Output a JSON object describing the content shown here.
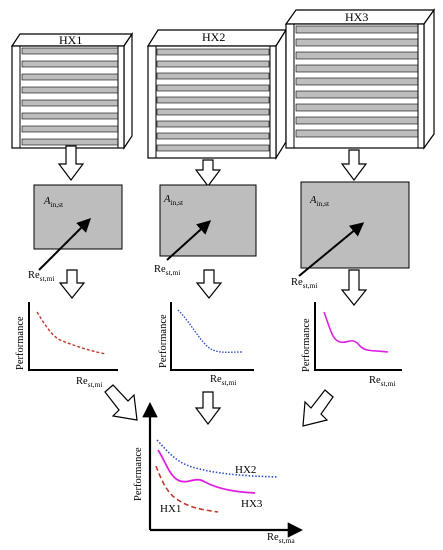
{
  "exchangers": [
    {
      "id": "hx1",
      "label": "HX1",
      "area_label": "A",
      "area_sub": "in,st",
      "re_label": "Re",
      "re_sub": "st,mi",
      "y_label": "Performance",
      "x_label": "Re",
      "x_sub": "st,mi",
      "color": "#c0392b"
    },
    {
      "id": "hx2",
      "label": "HX2",
      "area_label": "A",
      "area_sub": "in,st",
      "re_label": "Re",
      "re_sub": "st,mi",
      "y_label": "Performance",
      "x_label": "Re",
      "x_sub": "st,mi",
      "color": "#2f4fc4"
    },
    {
      "id": "hx3",
      "label": "HX3",
      "area_label": "A",
      "area_sub": "in,st",
      "re_label": "Re",
      "re_sub": "st,mi",
      "y_label": "Performance",
      "x_label": "Re",
      "x_sub": "st,mi",
      "color": "#e020e0"
    }
  ],
  "combined": {
    "y_label": "Performance",
    "x_label": "Re",
    "x_sub": "st,ma",
    "series": [
      {
        "name": "HX2",
        "color": "#2f4fc4",
        "style": "dotted"
      },
      {
        "name": "HX3",
        "color": "#e020e0",
        "style": "solid"
      },
      {
        "name": "HX1",
        "color": "#c0392b",
        "style": "dashed"
      }
    ]
  },
  "colors": {
    "fin": "#bdbdbd",
    "box": "#bdbdbd",
    "outline": "#000000"
  }
}
